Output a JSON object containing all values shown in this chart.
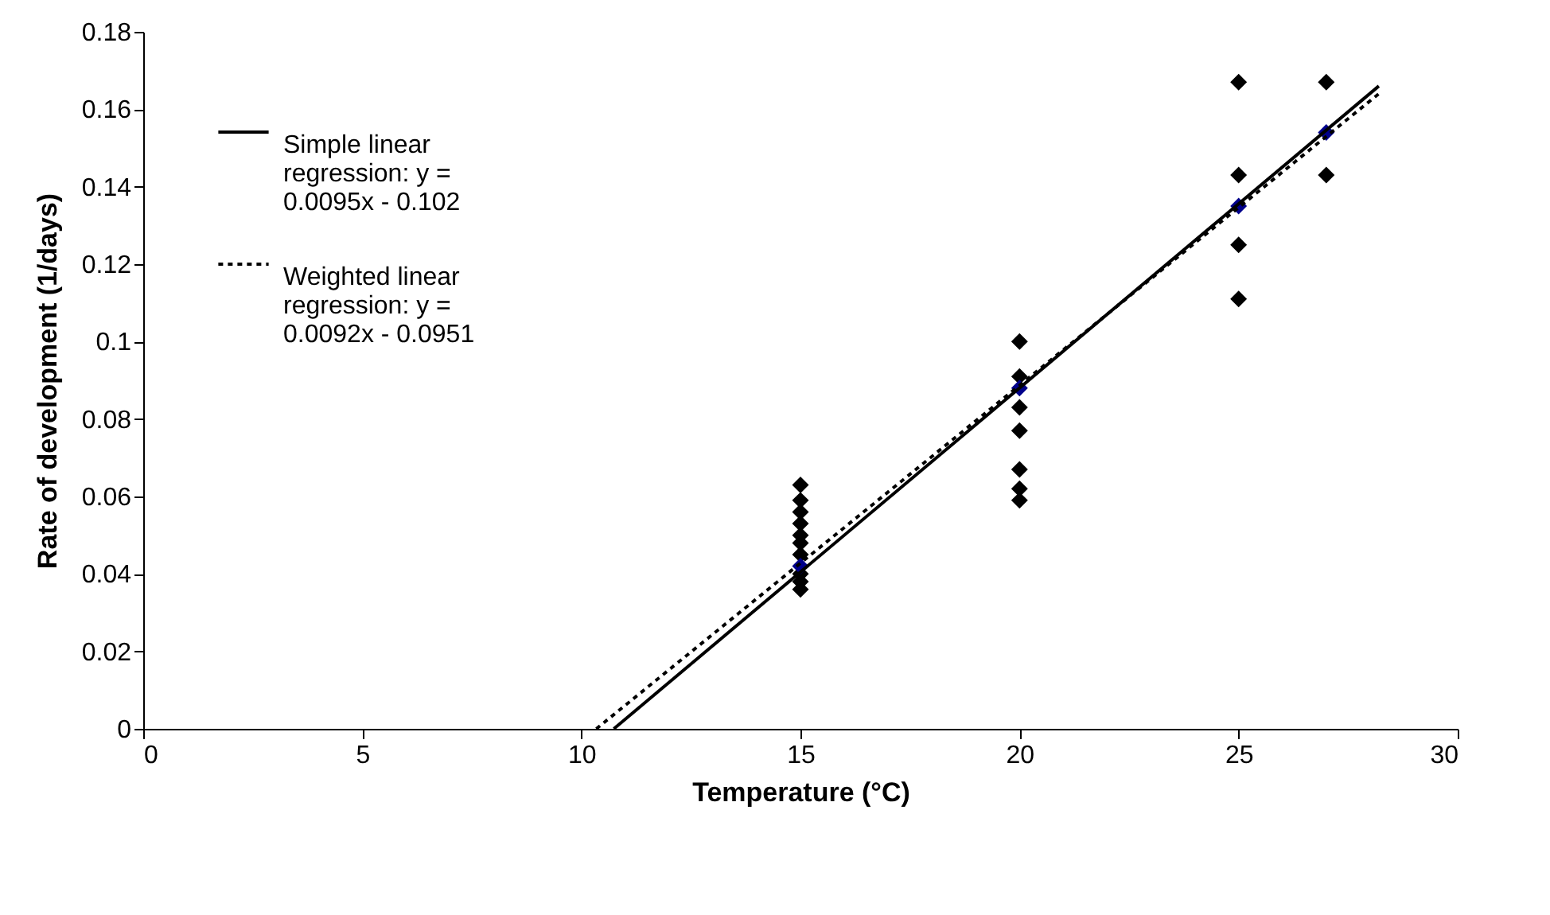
{
  "chart_data": {
    "type": "scatter",
    "xlabel": "Temperature (°C)",
    "ylabel": "Rate of development (1/days)",
    "xlim": [
      0,
      30
    ],
    "xticks": [
      0,
      5,
      10,
      15,
      20,
      25,
      30
    ],
    "ylim": [
      0,
      0.18
    ],
    "yticks": [
      0,
      0.02,
      0.04,
      0.06,
      0.08,
      0.1,
      0.12,
      0.14,
      0.16,
      0.18
    ],
    "grid": false,
    "legend": "top left",
    "marker": "diamond",
    "series": [
      {
        "color": "#000000",
        "x": [
          15,
          15,
          15,
          15,
          15,
          15,
          15,
          15,
          15,
          15,
          20,
          20,
          20,
          20,
          20,
          20,
          20,
          25,
          25,
          25,
          25,
          27,
          27
        ],
        "values": [
          0.036,
          0.038,
          0.04,
          0.045,
          0.048,
          0.05,
          0.053,
          0.056,
          0.059,
          0.063,
          0.059,
          0.062,
          0.067,
          0.077,
          0.083,
          0.091,
          0.1,
          0.111,
          0.125,
          0.143,
          0.167,
          0.143,
          0.167
        ]
      },
      {
        "type": "scatter",
        "color": "#00008b",
        "x": [
          15,
          20,
          25,
          27
        ],
        "values": [
          0.042,
          0.088,
          0.135,
          0.154
        ]
      },
      {
        "type": "line",
        "name": "Simple linear regression: y = 0.0095x - 0.102",
        "color": "#000000",
        "line_style": "solid",
        "marker": "none",
        "x": [
          10.74,
          28.2
        ],
        "values": [
          0,
          0.166
        ]
      },
      {
        "type": "line",
        "name": "Weighted linear regression: y = 0.0092x - 0.0951",
        "color": "#000000",
        "line_style": "dotted",
        "marker": "none",
        "x": [
          10.34,
          28.2
        ],
        "values": [
          0,
          0.164
        ]
      }
    ]
  }
}
